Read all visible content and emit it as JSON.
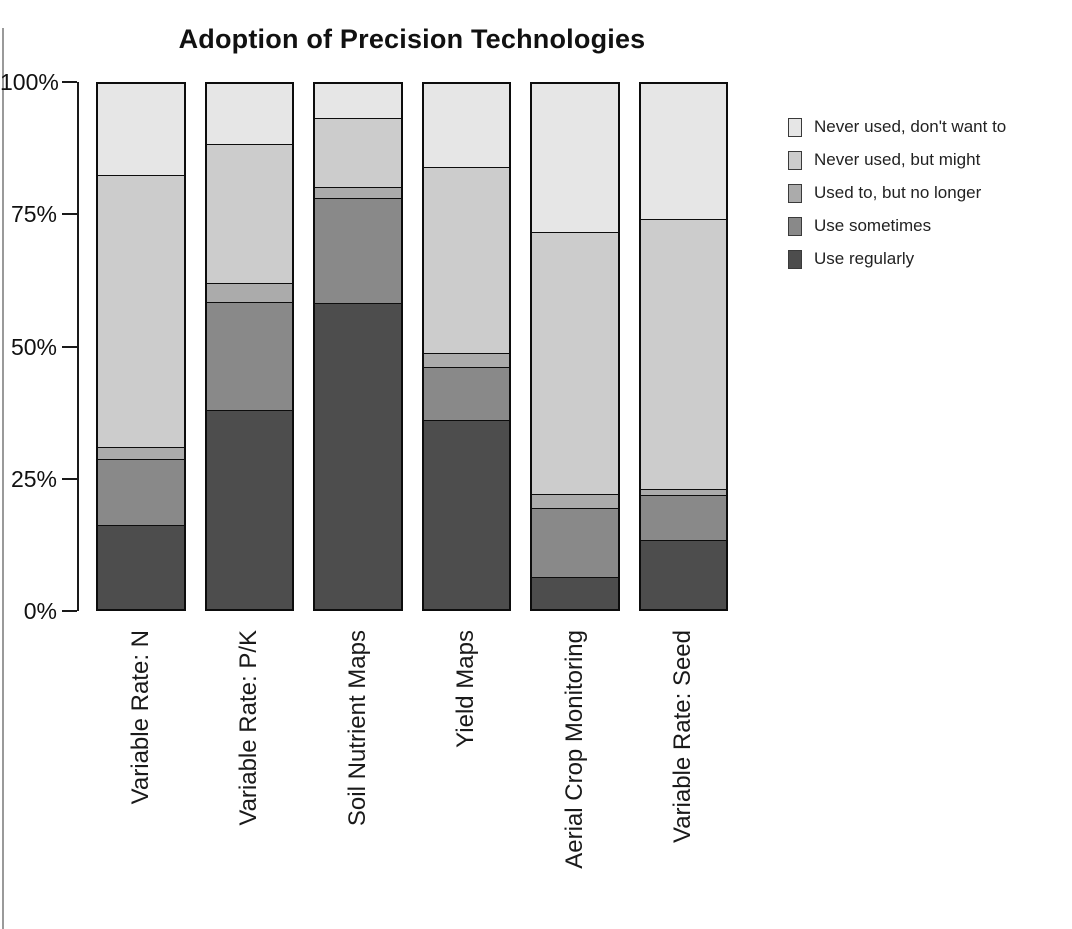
{
  "page": {
    "background": "#ffffff"
  },
  "chart_data": {
    "type": "bar",
    "stacked": true,
    "orientation": "vertical",
    "title": "Adoption of Precision Technologies",
    "unit": "%",
    "categories": [
      "Variable Rate: N",
      "Variable Rate: P/K",
      "Soil Nutrient Maps",
      "Yield Maps",
      "Aerial Crop Monitoring",
      "Variable Rate: Seed"
    ],
    "series_bottom_to_top": [
      {
        "name": "Use regularly",
        "color": "#4d4d4d",
        "values": [
          16,
          38,
          58.5,
          36,
          6,
          13
        ]
      },
      {
        "name": "Use sometimes",
        "color": "#898989",
        "values": [
          12.5,
          20.5,
          20,
          10,
          13,
          8.5
        ]
      },
      {
        "name": "Used to, but no longer",
        "color": "#ababab",
        "values": [
          2,
          3.5,
          2,
          2.5,
          2.5,
          1
        ]
      },
      {
        "name": "Never used, but might",
        "color": "#cccccc",
        "values": [
          52,
          26.5,
          13,
          35.5,
          50,
          51.5
        ]
      },
      {
        "name": "Never used, don't want to",
        "color": "#e6e6e6",
        "values": [
          17.5,
          11.5,
          6.5,
          16,
          28.5,
          26
        ]
      }
    ],
    "y_ticks": [
      {
        "value": 0,
        "label": "0%"
      },
      {
        "value": 25,
        "label": "25%"
      },
      {
        "value": 50,
        "label": "50%"
      },
      {
        "value": 75,
        "label": "75%"
      },
      {
        "value": 100,
        "label": "100%"
      }
    ],
    "ylim": [
      0,
      100
    ],
    "grid": false,
    "legend_position": "right",
    "legend_top_to_bottom": [
      "Never used, don't want to",
      "Never used, but might",
      "Used to, but no longer",
      "Use sometimes",
      "Use regularly"
    ],
    "bar_border_color": "#000000"
  }
}
